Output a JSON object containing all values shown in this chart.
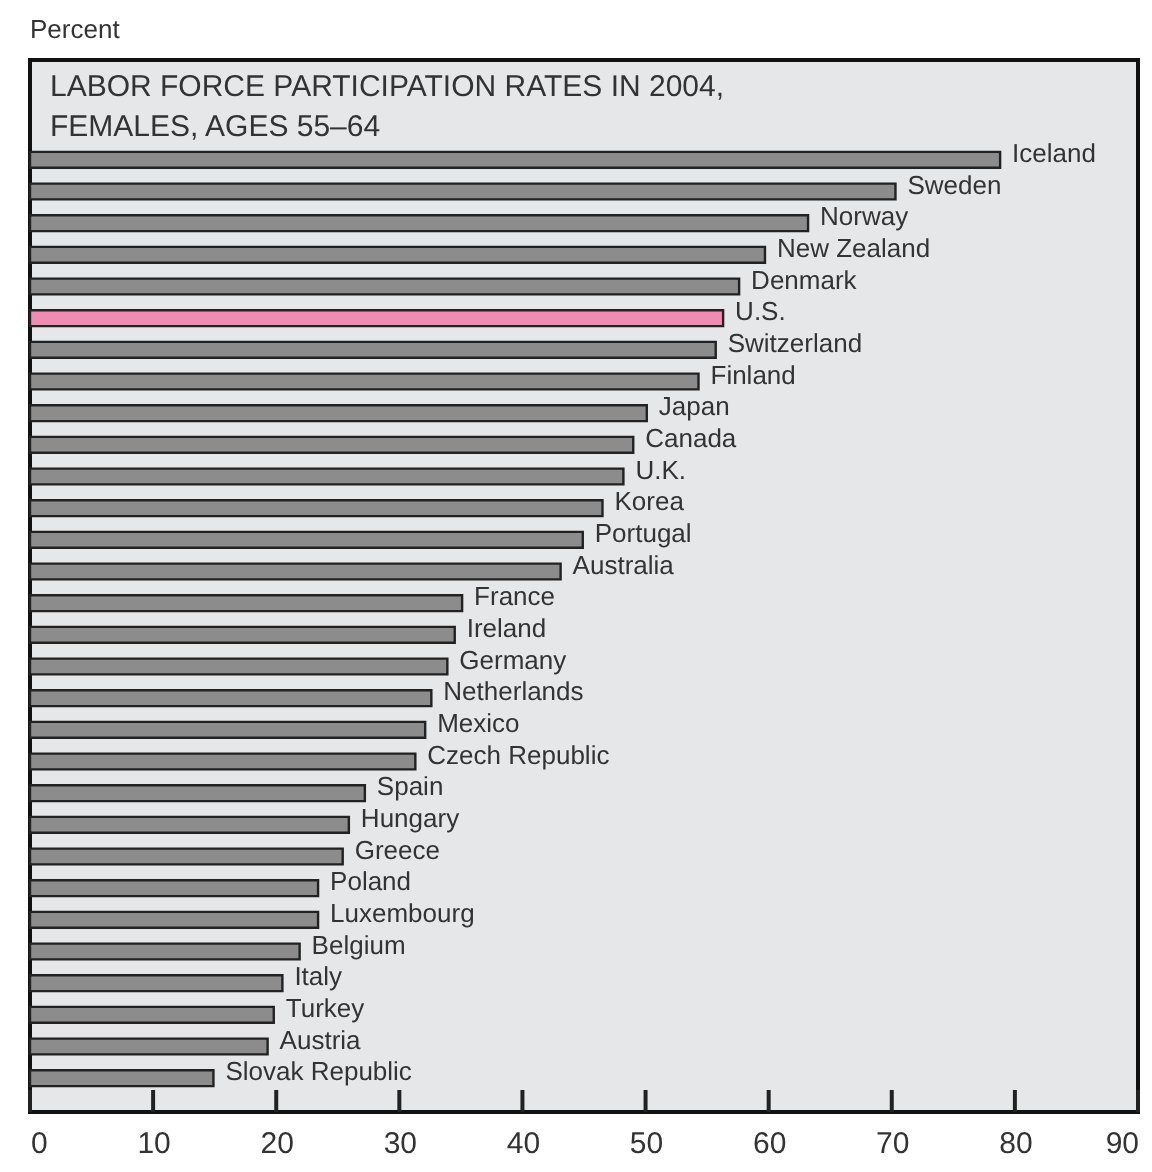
{
  "chart_data": {
    "type": "bar",
    "orientation": "horizontal",
    "title": "LABOR FORCE PARTICIPATION RATES IN 2004,\nFEMALES, AGES 55–64",
    "xlabel": "Percent",
    "categories": [
      "Iceland",
      "Sweden",
      "Norway",
      "New Zealand",
      "Denmark",
      "U.S.",
      "Switzerland",
      "Finland",
      "Japan",
      "Canada",
      "U.K.",
      "Korea",
      "Portugal",
      "Australia",
      "France",
      "Ireland",
      "Germany",
      "Netherlands",
      "Mexico",
      "Czech Republic",
      "Spain",
      "Hungary",
      "Greece",
      "Poland",
      "Luxembourg",
      "Belgium",
      "Italy",
      "Turkey",
      "Austria",
      "Slovak Republic"
    ],
    "values": [
      78.8,
      70.3,
      63.2,
      59.7,
      57.6,
      56.3,
      55.7,
      54.3,
      50.1,
      49.0,
      48.2,
      46.5,
      44.9,
      43.1,
      35.1,
      34.5,
      33.9,
      32.6,
      32.1,
      31.3,
      27.2,
      25.9,
      25.4,
      23.4,
      23.4,
      21.9,
      20.5,
      19.8,
      19.3,
      14.9
    ],
    "colors": [
      "#8c8c8c",
      "#8c8c8c",
      "#8c8c8c",
      "#8c8c8c",
      "#8c8c8c",
      "#f08cb4",
      "#8c8c8c",
      "#8c8c8c",
      "#8c8c8c",
      "#8c8c8c",
      "#8c8c8c",
      "#8c8c8c",
      "#8c8c8c",
      "#8c8c8c",
      "#8c8c8c",
      "#8c8c8c",
      "#8c8c8c",
      "#8c8c8c",
      "#8c8c8c",
      "#8c8c8c",
      "#8c8c8c",
      "#8c8c8c",
      "#8c8c8c",
      "#8c8c8c",
      "#8c8c8c",
      "#8c8c8c",
      "#8c8c8c",
      "#8c8c8c",
      "#8c8c8c",
      "#8c8c8c"
    ],
    "xlim": [
      0,
      90
    ],
    "xticks": [
      0,
      10,
      20,
      30,
      40,
      50,
      60,
      70,
      80,
      90
    ]
  }
}
